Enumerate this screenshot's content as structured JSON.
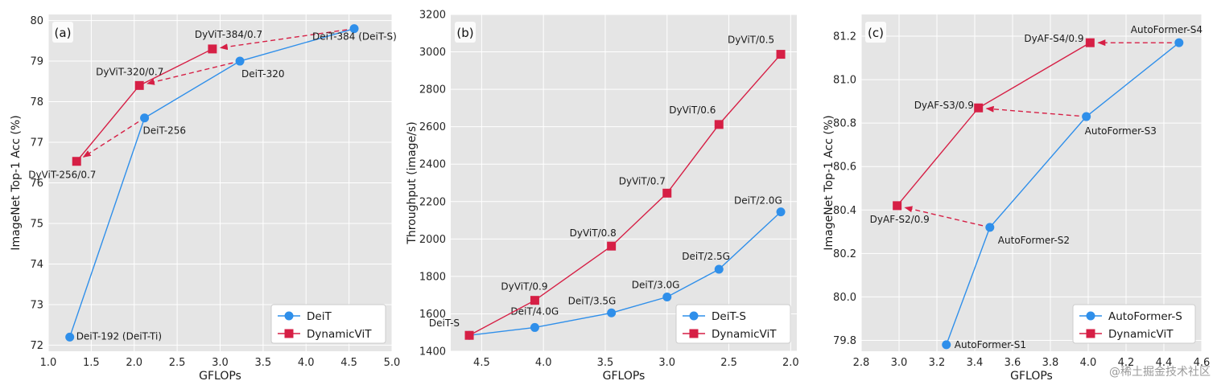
{
  "watermark": "@稀土掘金技术社区",
  "colors": {
    "blue": "#2f8fea",
    "red": "#d61f45",
    "panel_bg": "#e5e5e5"
  },
  "chart_data": [
    {
      "type": "line",
      "panel": "(a)",
      "xlabel": "GFLOPs",
      "ylabel": "ImageNet Top-1 Acc (%)",
      "xlim": [
        1.0,
        5.0
      ],
      "ylim": [
        71.85,
        80.15
      ],
      "xticks": [
        "1.0",
        "1.5",
        "2.0",
        "2.5",
        "3.0",
        "3.5",
        "4.0",
        "4.5",
        "5.0"
      ],
      "yticks": [
        "72",
        "73",
        "74",
        "75",
        "76",
        "77",
        "78",
        "79",
        "80"
      ],
      "xtick_values": [
        1.0,
        1.5,
        2.0,
        2.5,
        3.0,
        3.5,
        4.0,
        4.5,
        5.0
      ],
      "ytick_values": [
        72,
        73,
        74,
        75,
        76,
        77,
        78,
        79,
        80
      ],
      "legend": "bottom-right",
      "grid": true,
      "series": [
        {
          "name": "DeiT",
          "marker": "circle",
          "color": "#2f8fea",
          "points": [
            {
              "x": 1.25,
              "y": 72.2,
              "label": "DeiT-192 (DeiT-Ti)"
            },
            {
              "x": 2.12,
              "y": 77.6,
              "label": "DeiT-256"
            },
            {
              "x": 3.23,
              "y": 79.0,
              "label": "DeiT-320"
            },
            {
              "x": 4.56,
              "y": 79.8,
              "label": "DeiT-384 (DeiT-S)"
            }
          ]
        },
        {
          "name": "DynamicViT",
          "marker": "square",
          "color": "#d61f45",
          "points": [
            {
              "x": 1.33,
              "y": 76.53,
              "label": "DyViT-256/0.7"
            },
            {
              "x": 2.06,
              "y": 78.4,
              "label": "DyViT-320/0.7"
            },
            {
              "x": 2.91,
              "y": 79.3,
              "label": "DyViT-384/0.7"
            }
          ]
        }
      ],
      "arrows": [
        [
          2.12,
          77.6,
          1.33,
          76.53
        ],
        [
          3.23,
          79.0,
          2.06,
          78.4
        ],
        [
          4.56,
          79.8,
          2.91,
          79.3
        ]
      ]
    },
    {
      "type": "line",
      "panel": "(b)",
      "xlabel": "GFLOPs",
      "ylabel": "Throughput (image/s)",
      "xlim": [
        4.75,
        1.95
      ],
      "ylim": [
        1400,
        3200
      ],
      "x_inverted": true,
      "xticks": [
        "4.5",
        "4.0",
        "3.5",
        "3.0",
        "2.5",
        "2.0"
      ],
      "yticks": [
        "1400",
        "1600",
        "1800",
        "2000",
        "2200",
        "2400",
        "2600",
        "2800",
        "3000",
        "3200"
      ],
      "xtick_values": [
        4.5,
        4.0,
        3.5,
        3.0,
        2.5,
        2.0
      ],
      "ytick_values": [
        1400,
        1600,
        1800,
        2000,
        2200,
        2400,
        2600,
        2800,
        3000,
        3200
      ],
      "legend": "bottom-right",
      "grid": true,
      "series": [
        {
          "name": "DeiT-S",
          "marker": "circle",
          "color": "#2f8fea",
          "points": [
            {
              "x": 4.6,
              "y": 1485,
              "label": "DeiT-S"
            },
            {
              "x": 4.07,
              "y": 1527,
              "label": "DeiT/4.0G"
            },
            {
              "x": 3.45,
              "y": 1605,
              "label": "DeiT/3.5G"
            },
            {
              "x": 3.0,
              "y": 1690,
              "label": "DeiT/3.0G"
            },
            {
              "x": 2.58,
              "y": 1838,
              "label": "DeiT/2.5G"
            },
            {
              "x": 2.08,
              "y": 2145,
              "label": "DeiT/2.0G"
            }
          ]
        },
        {
          "name": "DynamicViT",
          "marker": "square",
          "color": "#d61f45",
          "points": [
            {
              "x": 4.6,
              "y": 1485,
              "label": ""
            },
            {
              "x": 4.07,
              "y": 1672,
              "label": "DyViT/0.9"
            },
            {
              "x": 3.45,
              "y": 1962,
              "label": "DyViT/0.8"
            },
            {
              "x": 3.0,
              "y": 2245,
              "label": "DyViT/0.7"
            },
            {
              "x": 2.58,
              "y": 2612,
              "label": "DyViT/0.6"
            },
            {
              "x": 2.08,
              "y": 2987,
              "label": "DyViT/0.5"
            }
          ]
        }
      ],
      "arrows": []
    },
    {
      "type": "line",
      "panel": "(c)",
      "xlabel": "GFLOPs",
      "ylabel": "ImageNet Top-1 Acc (%)",
      "xlim": [
        2.8,
        4.6
      ],
      "ylim": [
        79.75,
        81.3
      ],
      "xticks": [
        "2.8",
        "3.0",
        "3.2",
        "3.4",
        "3.6",
        "3.8",
        "4.0",
        "4.2",
        "4.4",
        "4.6"
      ],
      "yticks": [
        "79.8",
        "80.0",
        "80.2",
        "80.4",
        "80.6",
        "80.8",
        "81.0",
        "81.2"
      ],
      "xtick_values": [
        2.8,
        3.0,
        3.2,
        3.4,
        3.6,
        3.8,
        4.0,
        4.2,
        4.4,
        4.6
      ],
      "ytick_values": [
        79.8,
        80.0,
        80.2,
        80.4,
        80.6,
        80.8,
        81.0,
        81.2
      ],
      "legend": "bottom-right",
      "grid": true,
      "series": [
        {
          "name": "AutoFormer-S",
          "marker": "circle",
          "color": "#2f8fea",
          "points": [
            {
              "x": 3.25,
              "y": 79.78,
              "label": "AutoFormer-S1"
            },
            {
              "x": 3.48,
              "y": 80.32,
              "label": "AutoFormer-S2"
            },
            {
              "x": 3.99,
              "y": 80.83,
              "label": "AutoFormer-S3"
            },
            {
              "x": 4.48,
              "y": 81.17,
              "label": "AutoFormer-S4"
            }
          ]
        },
        {
          "name": "DynamicViT",
          "marker": "square",
          "color": "#d61f45",
          "points": [
            {
              "x": 2.99,
              "y": 80.42,
              "label": "DyAF-S2/0.9"
            },
            {
              "x": 3.42,
              "y": 80.87,
              "label": "DyAF-S3/0.9"
            },
            {
              "x": 4.01,
              "y": 81.17,
              "label": "DyAF-S4/0.9"
            }
          ]
        }
      ],
      "arrows": [
        [
          3.48,
          80.32,
          2.99,
          80.42
        ],
        [
          3.99,
          80.83,
          3.42,
          80.87
        ],
        [
          4.48,
          81.17,
          4.01,
          81.17
        ]
      ]
    }
  ]
}
